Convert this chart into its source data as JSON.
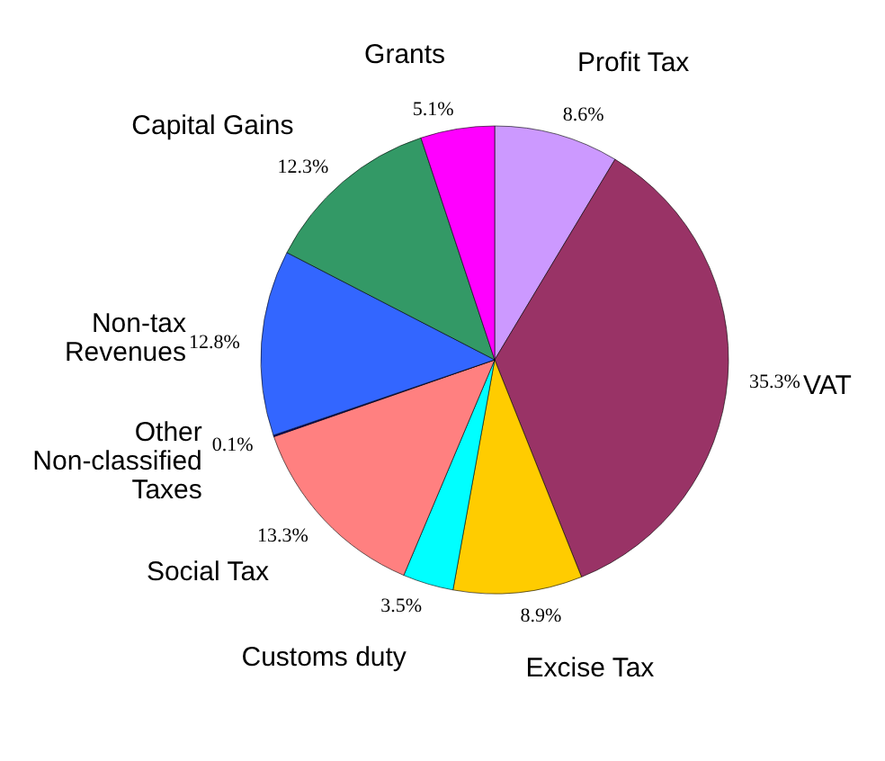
{
  "chart_data": {
    "type": "pie",
    "categories": [
      "Profit Tax",
      "VAT",
      "Excise Tax",
      "Customs duty",
      "Social Tax",
      "Other Non-classified Taxes",
      "Non-tax Revenues",
      "Capital Gains",
      "Grants"
    ],
    "values": [
      8.6,
      35.3,
      8.9,
      3.5,
      13.3,
      0.1,
      12.8,
      12.3,
      5.1
    ],
    "value_labels": [
      "8.6%",
      "35.3%",
      "8.9%",
      "3.5%",
      "13.3%",
      "0.1%",
      "12.8%",
      "12.3%",
      "5.1%"
    ],
    "colors": [
      "#cc99ff",
      "#993366",
      "#ffcc00",
      "#00ffff",
      "#ff8080",
      "#000080",
      "#3366ff",
      "#339966",
      "#ff00ff"
    ]
  }
}
